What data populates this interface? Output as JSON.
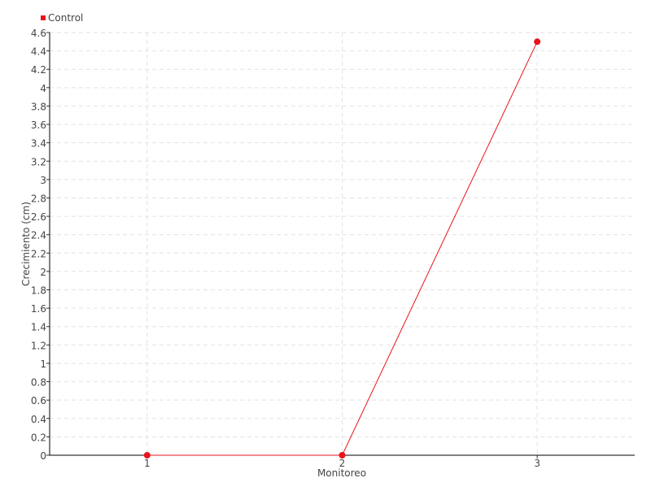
{
  "chart_data": {
    "type": "line",
    "title": "",
    "xlabel": "Monitoreo",
    "ylabel": "Crecimiento (cm)",
    "categories": [
      "1",
      "2",
      "3"
    ],
    "series": [
      {
        "name": "Control",
        "color": "#e8141c",
        "values": [
          0,
          0,
          4.5
        ]
      }
    ],
    "ylim": [
      0,
      4.6
    ],
    "yticks": [
      "0",
      "0.2",
      "0.4",
      "0.6",
      "0.8",
      "1",
      "1.2",
      "1.4",
      "1.6",
      "1.8",
      "2",
      "2.2",
      "2.4",
      "2.6",
      "2.8",
      "3",
      "3.2",
      "3.4",
      "3.6",
      "3.8",
      "4",
      "4.2",
      "4.4",
      "4.6"
    ],
    "grid": true,
    "legend_position": "top-left"
  }
}
